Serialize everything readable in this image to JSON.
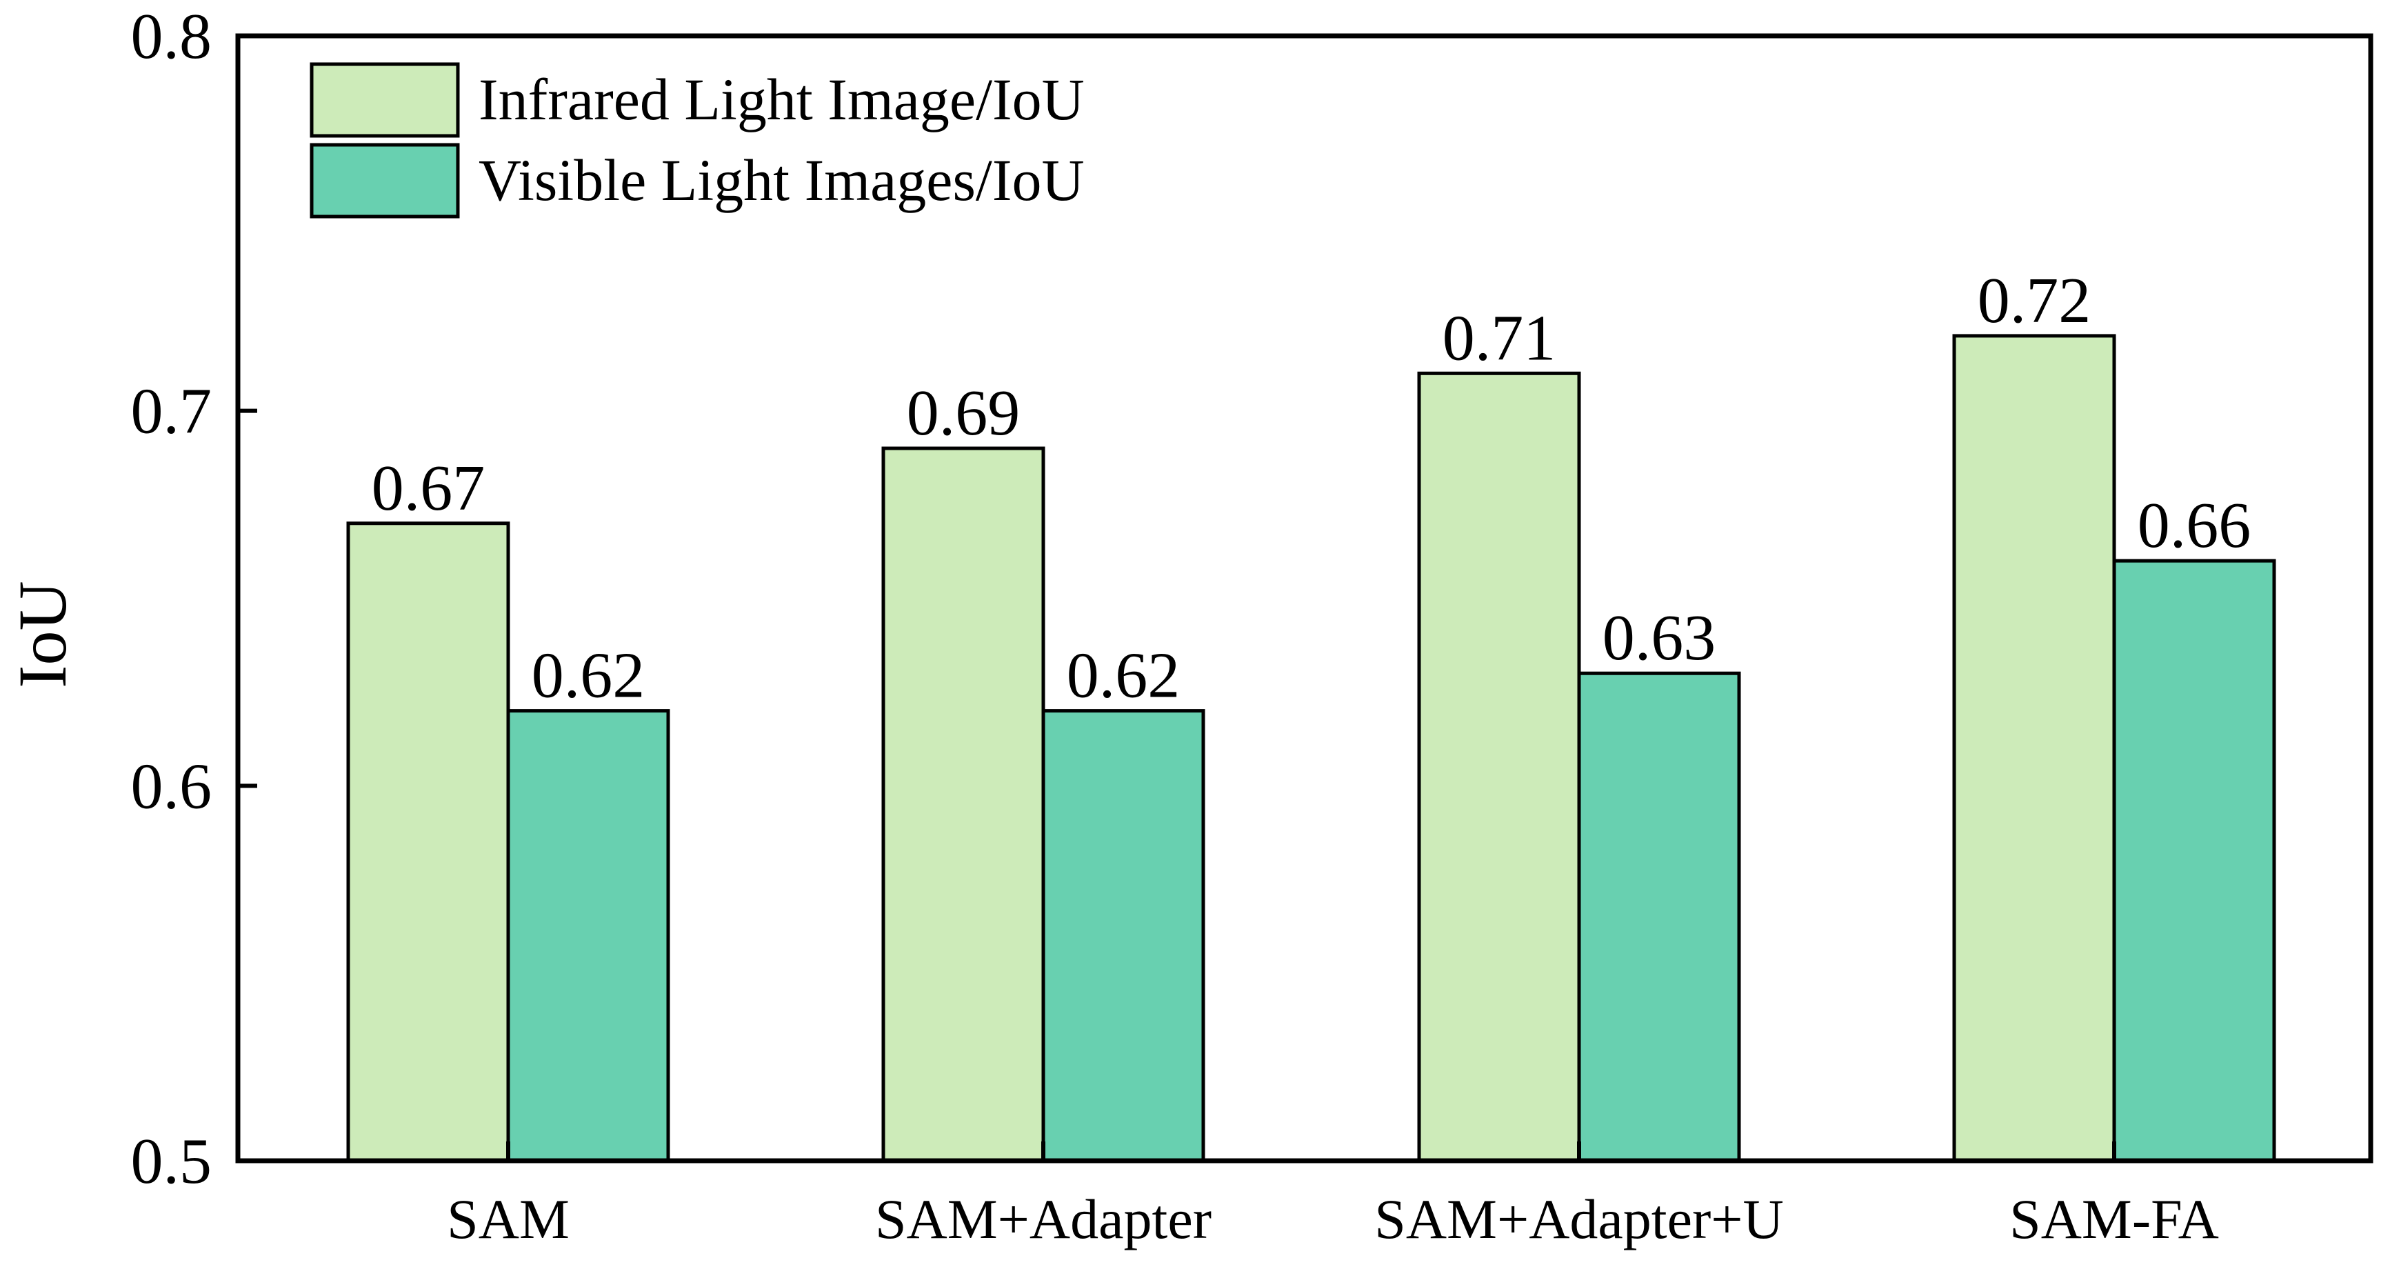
{
  "chart_data": {
    "type": "bar",
    "title": "",
    "xlabel": "",
    "ylabel": "IoU",
    "ylim": [
      0.5,
      0.8
    ],
    "yticks": [
      "0.5",
      "0.6",
      "0.7",
      "0.8"
    ],
    "categories": [
      "SAM",
      "SAM+Adapter",
      "SAM+Adapter+U",
      "SAM-FA"
    ],
    "series": [
      {
        "name": "Infrared Light Image/IoU",
        "color": "#cdebb9",
        "values": [
          0.67,
          0.69,
          0.71,
          0.72
        ],
        "labels": [
          "0.67",
          "0.69",
          "0.71",
          "0.72"
        ]
      },
      {
        "name": "Visible Light Images/IoU",
        "color": "#68d0b0",
        "values": [
          0.62,
          0.62,
          0.63,
          0.66
        ],
        "labels": [
          "0.62",
          "0.62",
          "0.63",
          "0.66"
        ]
      }
    ],
    "grid": false,
    "legend_position": "top-left"
  }
}
